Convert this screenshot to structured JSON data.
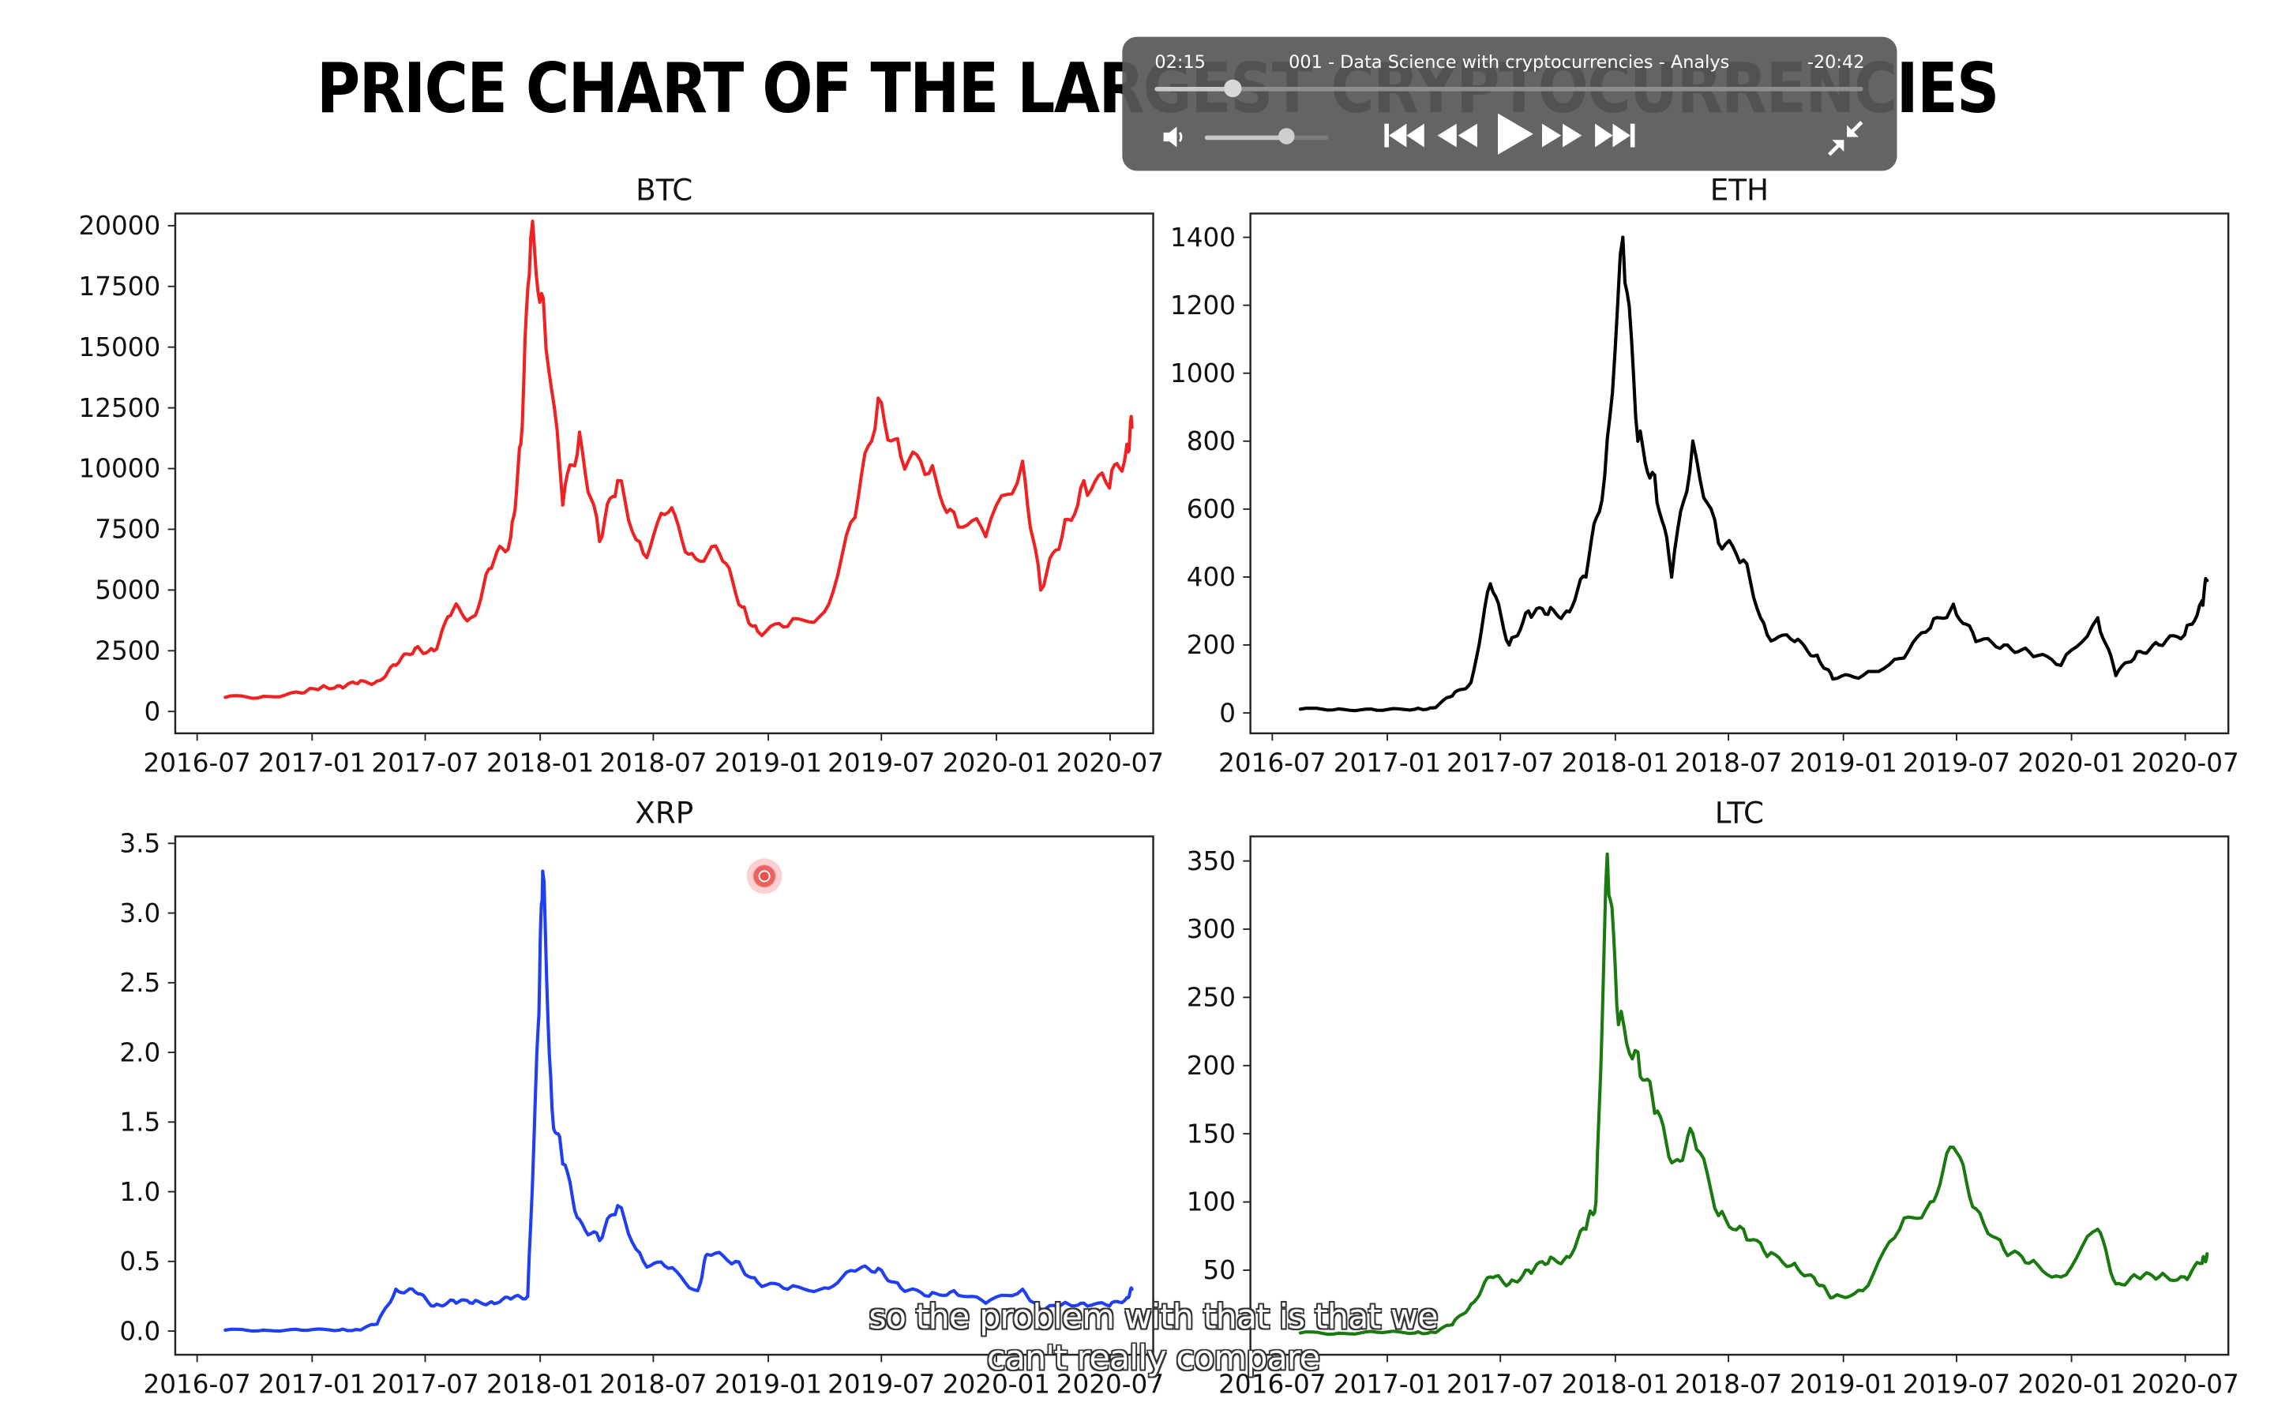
{
  "page": {
    "title": "PRICE CHART OF THE LARGEST CRYPTOCURRENCIES"
  },
  "player": {
    "elapsed": "02:15",
    "remaining": "-20:42",
    "video_title": "001 - Data Science with cryptocurrencies - Analysi...",
    "progress_fraction": 0.11,
    "volume_fraction": 0.66,
    "icons": [
      "volume-icon",
      "skip-back-icon",
      "rewind-icon",
      "play-icon",
      "fast-forward-icon",
      "skip-forward-icon",
      "exit-fullscreen-icon"
    ]
  },
  "captions": {
    "line1": "so the problem with that is that we",
    "line2": "can't really compare"
  },
  "chart_data": [
    {
      "type": "line",
      "title": "BTC",
      "color": "#ee2222",
      "x_ticks": [
        "2016-07",
        "2017-01",
        "2017-07",
        "2018-01",
        "2018-07",
        "2019-01",
        "2019-07",
        "2020-01",
        "2020-07"
      ],
      "y_ticks": [
        "0",
        "2500",
        "5000",
        "7500",
        "10000",
        "12500",
        "15000",
        "17500",
        "20000"
      ],
      "ylim": [
        -900,
        20500
      ],
      "x": [
        "2016-08",
        "2016-10",
        "2016-12",
        "2017-01",
        "2017-02",
        "2017-03",
        "2017-04",
        "2017-05",
        "2017-06",
        "2017-07",
        "2017-08",
        "2017-09",
        "2017-10",
        "2017-11",
        "2017-12-01",
        "2017-12-17",
        "2018-01-06",
        "2018-02-06",
        "2018-03-05",
        "2018-04-06",
        "2018-05-05",
        "2018-06-15",
        "2018-07-25",
        "2018-09-01",
        "2018-10-15",
        "2018-11-20",
        "2018-12-15",
        "2019-02-01",
        "2019-04-01",
        "2019-05-20",
        "2019-06-26",
        "2019-08-01",
        "2019-09-15",
        "2019-10-25",
        "2019-12-15",
        "2020-02-12",
        "2020-03-12",
        "2020-04-15",
        "2020-05-20",
        "2020-06-30",
        "2020-07-28",
        "2020-08-05"
      ],
      "y": [
        580,
        620,
        760,
        980,
        1050,
        1150,
        1250,
        1900,
        2600,
        2500,
        4200,
        3900,
        5900,
        7200,
        11000,
        19500,
        17000,
        8500,
        11500,
        7000,
        9500,
        6500,
        8200,
        6500,
        6500,
        4300,
        3300,
        3500,
        4100,
        8000,
        12900,
        10500,
        9800,
        8200,
        7200,
        10300,
        5000,
        7200,
        9500,
        9200,
        11000,
        11700
      ]
    },
    {
      "type": "line",
      "title": "ETH",
      "color": "#000000",
      "x_ticks": [
        "2016-07",
        "2017-01",
        "2017-07",
        "2018-01",
        "2018-07",
        "2019-01",
        "2019-07",
        "2020-01",
        "2020-07"
      ],
      "y_ticks": [
        "0",
        "200",
        "400",
        "600",
        "800",
        "1000",
        "1200",
        "1400"
      ],
      "ylim": [
        -60,
        1470
      ],
      "x": [
        "2016-08",
        "2016-10",
        "2016-12",
        "2017-02",
        "2017-03",
        "2017-04",
        "2017-05",
        "2017-06",
        "2017-07",
        "2017-08",
        "2017-09",
        "2017-10",
        "2017-11",
        "2017-12",
        "2018-01-13",
        "2018-02-06",
        "2018-03-05",
        "2018-04-01",
        "2018-05-05",
        "2018-06-15",
        "2018-07-25",
        "2018-09-01",
        "2018-10-15",
        "2018-11-20",
        "2018-12-15",
        "2019-02-01",
        "2019-04-01",
        "2019-05-20",
        "2019-06-26",
        "2019-08-01",
        "2019-09-15",
        "2019-10-25",
        "2019-12-15",
        "2020-02-12",
        "2020-03-12",
        "2020-04-15",
        "2020-05-20",
        "2020-06-30",
        "2020-07-28",
        "2020-08-05"
      ],
      "y": [
        11,
        12,
        8,
        11,
        15,
        50,
        90,
        380,
        200,
        300,
        290,
        300,
        400,
        700,
        1400,
        800,
        700,
        400,
        800,
        500,
        450,
        230,
        210,
        170,
        100,
        110,
        160,
        250,
        320,
        210,
        200,
        180,
        140,
        280,
        110,
        180,
        200,
        230,
        330,
        390
      ]
    },
    {
      "type": "line",
      "title": "XRP",
      "color": "#1f3ff0",
      "x_ticks": [
        "2016-07",
        "2017-01",
        "2017-07",
        "2018-01",
        "2018-07",
        "2019-01",
        "2019-07",
        "2020-01",
        "2020-07"
      ],
      "y_ticks": [
        "0.0",
        "0.5",
        "1.0",
        "1.5",
        "2.0",
        "2.5",
        "3.0",
        "3.5"
      ],
      "ylim": [
        -0.17,
        3.55
      ],
      "x": [
        "2016-08",
        "2016-10",
        "2016-12",
        "2017-02",
        "2017-03",
        "2017-04",
        "2017-05",
        "2017-06",
        "2017-07",
        "2017-08",
        "2017-09",
        "2017-10",
        "2017-11",
        "2017-12-12",
        "2017-12-29",
        "2018-01-05",
        "2018-01-20",
        "2018-02-06",
        "2018-03-05",
        "2018-04-06",
        "2018-05-05",
        "2018-06-15",
        "2018-07-25",
        "2018-09-10",
        "2018-09-25",
        "2018-11-10",
        "2018-12-15",
        "2019-02-01",
        "2019-04-01",
        "2019-05-20",
        "2019-06-26",
        "2019-08-01",
        "2019-09-15",
        "2019-10-25",
        "2019-12-15",
        "2020-02-12",
        "2020-03-12",
        "2020-04-15",
        "2020-05-20",
        "2020-06-30",
        "2020-07-28",
        "2020-08-05"
      ],
      "y": [
        0.007,
        0.007,
        0.007,
        0.008,
        0.01,
        0.05,
        0.3,
        0.28,
        0.18,
        0.22,
        0.2,
        0.21,
        0.23,
        0.25,
        2.2,
        3.3,
        1.6,
        1.2,
        0.8,
        0.65,
        0.9,
        0.5,
        0.45,
        0.29,
        0.55,
        0.5,
        0.35,
        0.3,
        0.31,
        0.43,
        0.45,
        0.31,
        0.25,
        0.29,
        0.2,
        0.3,
        0.15,
        0.19,
        0.2,
        0.18,
        0.24,
        0.3
      ]
    },
    {
      "type": "line",
      "title": "LTC",
      "color": "#1a7a10",
      "x_ticks": [
        "2016-07",
        "2017-01",
        "2017-07",
        "2018-01",
        "2018-07",
        "2019-01",
        "2019-07",
        "2020-01",
        "2020-07"
      ],
      "y_ticks": [
        "50",
        "100",
        "150",
        "200",
        "250",
        "300",
        "350"
      ],
      "ylim": [
        -12,
        368
      ],
      "x": [
        "2016-08",
        "2016-10",
        "2016-12",
        "2017-02",
        "2017-03",
        "2017-04",
        "2017-05",
        "2017-06",
        "2017-07",
        "2017-08",
        "2017-09",
        "2017-10",
        "2017-11",
        "2017-12-01",
        "2017-12-19",
        "2018-01-06",
        "2018-02-06",
        "2018-03-05",
        "2018-04-06",
        "2018-05-05",
        "2018-06-15",
        "2018-07-25",
        "2018-09-01",
        "2018-10-15",
        "2018-11-20",
        "2018-12-15",
        "2019-02-01",
        "2019-04-01",
        "2019-05-20",
        "2019-06-26",
        "2019-08-01",
        "2019-09-15",
        "2019-10-25",
        "2019-12-15",
        "2020-02-12",
        "2020-03-12",
        "2020-04-15",
        "2020-05-20",
        "2020-06-30",
        "2020-07-28",
        "2020-08-05"
      ],
      "y": [
        4,
        3.8,
        4.5,
        4,
        4.5,
        10,
        25,
        45,
        40,
        50,
        55,
        60,
        80,
        100,
        355,
        230,
        210,
        165,
        130,
        150,
        90,
        80,
        60,
        55,
        40,
        30,
        35,
        80,
        100,
        140,
        95,
        65,
        55,
        45,
        80,
        40,
        45,
        45,
        45,
        55,
        62
      ]
    }
  ]
}
